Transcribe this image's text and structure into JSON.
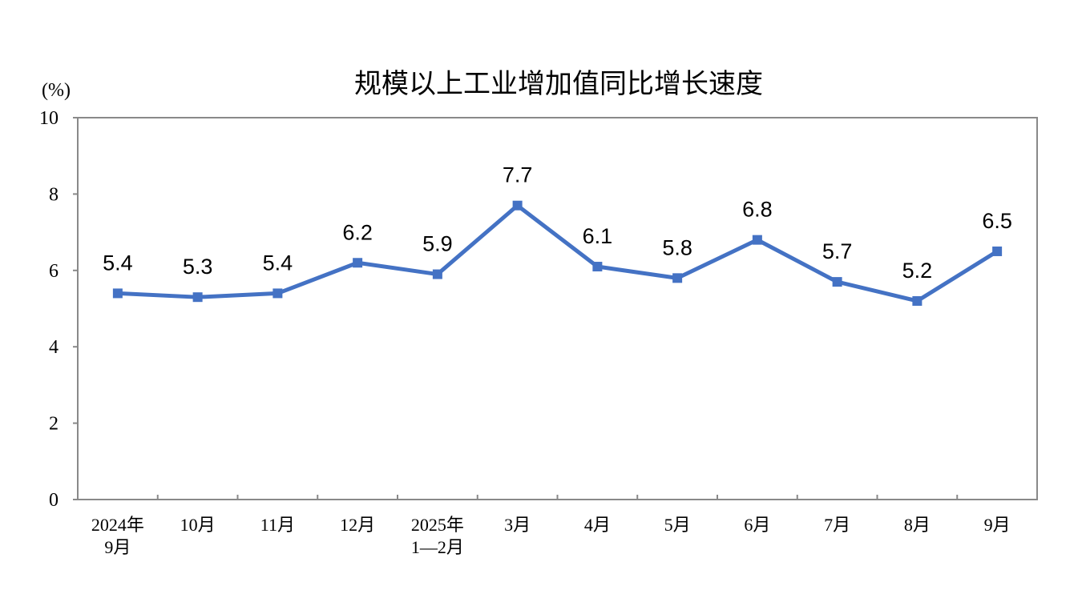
{
  "chart_data": {
    "type": "line",
    "title": "规模以上工业增加值同比增长速度",
    "unit_label": "(%)",
    "xlabel": "",
    "ylabel": "",
    "ylim": [
      0,
      10
    ],
    "yticks": [
      "0",
      "2",
      "4",
      "6",
      "8",
      "10"
    ],
    "categories": [
      [
        "2024年",
        "9月"
      ],
      [
        "10月"
      ],
      [
        "11月"
      ],
      [
        "12月"
      ],
      [
        "2025年",
        "1—2月"
      ],
      [
        "3月"
      ],
      [
        "4月"
      ],
      [
        "5月"
      ],
      [
        "6月"
      ],
      [
        "7月"
      ],
      [
        "8月"
      ],
      [
        "9月"
      ]
    ],
    "values": [
      5.4,
      5.3,
      5.4,
      6.2,
      5.9,
      7.7,
      6.1,
      5.8,
      6.8,
      5.7,
      5.2,
      6.5
    ],
    "data_labels": [
      "5.4",
      "5.3",
      "5.4",
      "6.2",
      "5.9",
      "7.7",
      "6.1",
      "5.8",
      "6.8",
      "5.7",
      "5.2",
      "6.5"
    ],
    "grid": false,
    "legend": "none",
    "colors": {
      "line": "#4472C4",
      "axis": "#898989"
    }
  }
}
